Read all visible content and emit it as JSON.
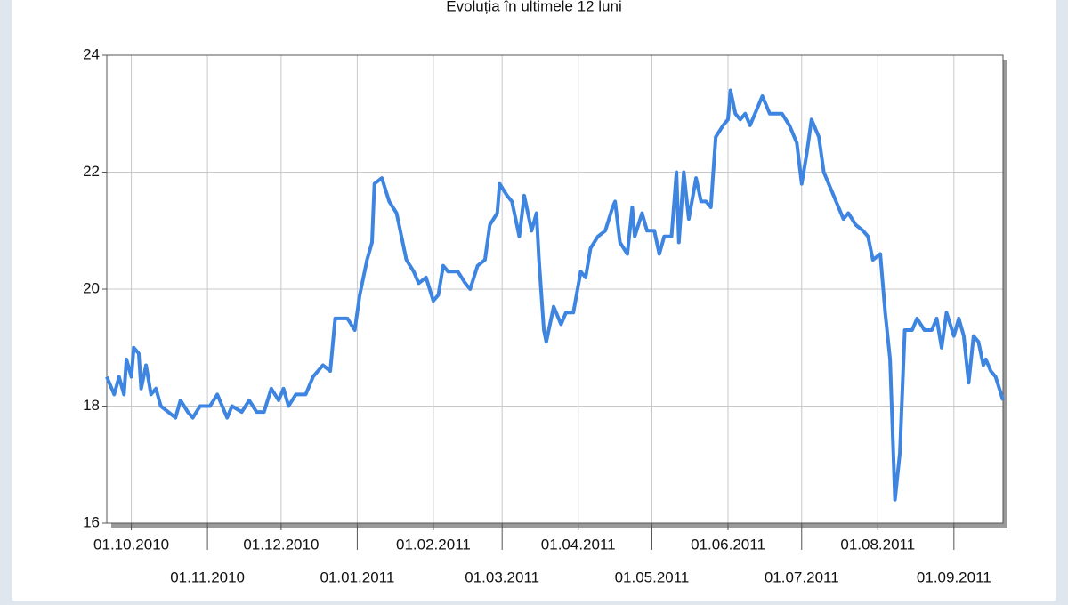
{
  "chart_data": {
    "type": "line",
    "title": "Evoluția în ultimele 12 luni",
    "x": [
      "2010-09-21",
      "2010-09-24",
      "2010-09-26",
      "2010-09-28",
      "2010-09-29",
      "2010-10-01",
      "2010-10-02",
      "2010-10-04",
      "2010-10-05",
      "2010-10-07",
      "2010-10-09",
      "2010-10-11",
      "2010-10-13",
      "2010-10-16",
      "2010-10-19",
      "2010-10-21",
      "2010-10-24",
      "2010-10-26",
      "2010-10-29",
      "2010-11-02",
      "2010-11-05",
      "2010-11-09",
      "2010-11-11",
      "2010-11-15",
      "2010-11-18",
      "2010-11-21",
      "2010-11-24",
      "2010-11-27",
      "2010-11-30",
      "2010-12-02",
      "2010-12-04",
      "2010-12-07",
      "2010-12-11",
      "2010-12-14",
      "2010-12-18",
      "2010-12-21",
      "2010-12-23",
      "2010-12-28",
      "2010-12-31",
      "2011-01-02",
      "2011-01-05",
      "2011-01-07",
      "2011-01-08",
      "2011-01-11",
      "2011-01-14",
      "2011-01-17",
      "2011-01-19",
      "2011-01-21",
      "2011-01-24",
      "2011-01-26",
      "2011-01-29",
      "2011-02-01",
      "2011-02-03",
      "2011-02-05",
      "2011-02-07",
      "2011-02-11",
      "2011-02-14",
      "2011-02-16",
      "2011-02-19",
      "2011-02-22",
      "2011-02-24",
      "2011-02-27",
      "2011-02-28",
      "2011-03-03",
      "2011-03-05",
      "2011-03-08",
      "2011-03-10",
      "2011-03-13",
      "2011-03-15",
      "2011-03-16",
      "2011-03-18",
      "2011-03-19",
      "2011-03-22",
      "2011-03-25",
      "2011-03-27",
      "2011-03-30",
      "2011-04-02",
      "2011-04-04",
      "2011-04-06",
      "2011-04-09",
      "2011-04-12",
      "2011-04-15",
      "2011-04-16",
      "2011-04-18",
      "2011-04-21",
      "2011-04-23",
      "2011-04-24",
      "2011-04-27",
      "2011-04-29",
      "2011-05-02",
      "2011-05-04",
      "2011-05-06",
      "2011-05-09",
      "2011-05-11",
      "2011-05-12",
      "2011-05-14",
      "2011-05-16",
      "2011-05-19",
      "2011-05-21",
      "2011-05-23",
      "2011-05-25",
      "2011-05-27",
      "2011-05-30",
      "2011-06-01",
      "2011-06-02",
      "2011-06-04",
      "2011-06-06",
      "2011-06-08",
      "2011-06-10",
      "2011-06-13",
      "2011-06-15",
      "2011-06-18",
      "2011-06-20",
      "2011-06-23",
      "2011-06-26",
      "2011-06-29",
      "2011-07-01",
      "2011-07-03",
      "2011-07-05",
      "2011-07-08",
      "2011-07-10",
      "2011-07-13",
      "2011-07-16",
      "2011-07-18",
      "2011-07-20",
      "2011-07-23",
      "2011-07-26",
      "2011-07-28",
      "2011-07-30",
      "2011-08-02",
      "2011-08-04",
      "2011-08-06",
      "2011-08-08",
      "2011-08-10",
      "2011-08-12",
      "2011-08-15",
      "2011-08-17",
      "2011-08-20",
      "2011-08-23",
      "2011-08-25",
      "2011-08-27",
      "2011-08-29",
      "2011-09-01",
      "2011-09-03",
      "2011-09-05",
      "2011-09-07",
      "2011-09-09",
      "2011-09-11",
      "2011-09-13",
      "2011-09-14",
      "2011-09-16",
      "2011-09-18",
      "2011-09-21"
    ],
    "values": [
      18.5,
      18.2,
      18.5,
      18.2,
      18.8,
      18.5,
      19.0,
      18.9,
      18.3,
      18.7,
      18.2,
      18.3,
      18.0,
      17.9,
      17.8,
      18.1,
      17.9,
      17.8,
      18.0,
      18.0,
      18.2,
      17.8,
      18.0,
      17.9,
      18.1,
      17.9,
      17.9,
      18.3,
      18.1,
      18.3,
      18.0,
      18.2,
      18.2,
      18.5,
      18.7,
      18.6,
      19.5,
      19.5,
      19.3,
      19.9,
      20.5,
      20.8,
      21.8,
      21.9,
      21.5,
      21.3,
      20.9,
      20.5,
      20.3,
      20.1,
      20.2,
      19.8,
      19.9,
      20.4,
      20.3,
      20.3,
      20.1,
      20.0,
      20.4,
      20.5,
      21.1,
      21.3,
      21.8,
      21.6,
      21.5,
      20.9,
      21.6,
      21.0,
      21.3,
      20.5,
      19.3,
      19.1,
      19.7,
      19.4,
      19.6,
      19.6,
      20.3,
      20.2,
      20.7,
      20.9,
      21.0,
      21.4,
      21.5,
      20.8,
      20.6,
      21.4,
      20.9,
      21.3,
      21.0,
      21.0,
      20.6,
      20.9,
      20.9,
      22.0,
      20.8,
      22.0,
      21.2,
      21.9,
      21.5,
      21.5,
      21.4,
      22.6,
      22.8,
      22.9,
      23.4,
      23.0,
      22.9,
      23.0,
      22.8,
      23.1,
      23.3,
      23.0,
      23.0,
      23.0,
      22.8,
      22.5,
      21.8,
      22.3,
      22.9,
      22.6,
      22.0,
      21.7,
      21.4,
      21.2,
      21.3,
      21.1,
      21.0,
      20.9,
      20.5,
      20.6,
      19.6,
      18.8,
      16.4,
      17.2,
      19.3,
      19.3,
      19.5,
      19.3,
      19.3,
      19.5,
      19.0,
      19.6,
      19.2,
      19.5,
      19.2,
      18.4,
      19.2,
      19.1,
      18.7,
      18.8,
      18.6,
      18.5,
      18.1
    ],
    "color": "#3d85e0",
    "xlim": [
      "2010-09-21",
      "2011-09-21"
    ],
    "xticks": [
      {
        "value": "2010-10-01",
        "label": "01.10.2010"
      },
      {
        "value": "2010-11-01",
        "label": "01.11.2010"
      },
      {
        "value": "2010-12-01",
        "label": "01.12.2010"
      },
      {
        "value": "2011-01-01",
        "label": "01.01.2011"
      },
      {
        "value": "2011-02-01",
        "label": "01.02.2011"
      },
      {
        "value": "2011-03-01",
        "label": "01.03.2011"
      },
      {
        "value": "2011-04-01",
        "label": "01.04.2011"
      },
      {
        "value": "2011-05-01",
        "label": "01.05.2011"
      },
      {
        "value": "2011-06-01",
        "label": "01.06.2011"
      },
      {
        "value": "2011-07-01",
        "label": "01.07.2011"
      },
      {
        "value": "2011-08-01",
        "label": "01.08.2011"
      },
      {
        "value": "2011-09-01",
        "label": "01.09.2011"
      }
    ],
    "ylim": [
      16,
      24
    ],
    "yticks": [
      16,
      18,
      20,
      22,
      24
    ],
    "grid": true
  }
}
